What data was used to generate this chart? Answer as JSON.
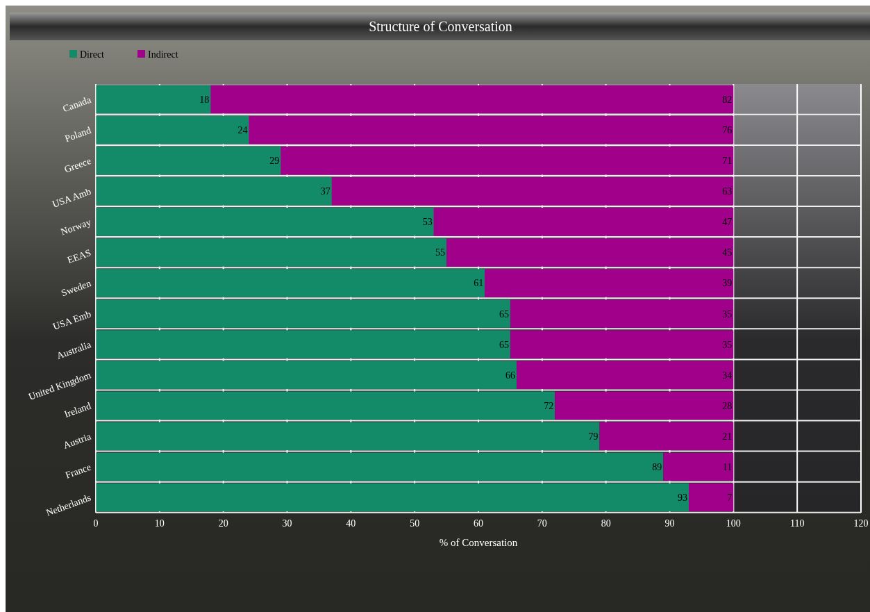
{
  "chart_data": {
    "type": "bar",
    "orientation": "horizontal",
    "stacked": true,
    "title": "Structure of Conversation",
    "xlabel": "% of Conversation",
    "categories": [
      "Canada",
      "Poland",
      "Greece",
      "USA Amb",
      "Norway",
      "EEAS",
      "Sweden",
      "USA Emb",
      "Australia",
      "United Kingdom",
      "Ireland",
      "Austria",
      "France",
      "Netherlands"
    ],
    "series": [
      {
        "name": "Direct",
        "color": "#138a68",
        "values": [
          18,
          24,
          29,
          37,
          53,
          55,
          61,
          65,
          65,
          66,
          72,
          79,
          89,
          93
        ]
      },
      {
        "name": "Indirect",
        "color": "#a0008a",
        "values": [
          82,
          76,
          71,
          63,
          47,
          45,
          39,
          35,
          35,
          34,
          28,
          21,
          11,
          7
        ]
      }
    ],
    "xlim": [
      0,
      120
    ],
    "xticks": [
      0,
      10,
      20,
      30,
      40,
      50,
      60,
      70,
      80,
      90,
      100,
      110,
      120
    ],
    "grid": true,
    "legend": "top left",
    "data_labels": true
  }
}
